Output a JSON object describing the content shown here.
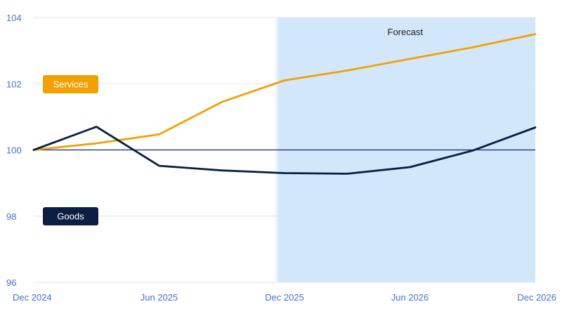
{
  "chart_data": {
    "type": "line",
    "x": [
      "Dec 2024",
      "Mar 2025",
      "Jun 2025",
      "Sep 2025",
      "Dec 2025",
      "Mar 2026",
      "Jun 2026",
      "Sep 2026",
      "Dec 2026"
    ],
    "xticks": [
      "Dec 2024",
      "Jun 2025",
      "Dec 2025",
      "Jun 2026",
      "Dec 2026"
    ],
    "yticks": [
      96,
      98,
      100,
      102,
      104
    ],
    "ylim": [
      96,
      104
    ],
    "reference_line": 100,
    "forecast": {
      "label": "Forecast",
      "start_index": 3.85,
      "end_index": 8
    },
    "series": [
      {
        "name": "Services",
        "color": "#f3a005",
        "values": [
          100.0,
          100.2,
          100.47,
          101.45,
          102.1,
          102.4,
          102.75,
          103.1,
          103.5
        ]
      },
      {
        "name": "Goods",
        "color": "#0b1f44",
        "values": [
          100.0,
          100.7,
          99.52,
          99.38,
          99.3,
          99.28,
          99.48,
          99.98,
          100.68
        ]
      }
    ],
    "colors": {
      "reference": "#0b2a7a",
      "forecast_bg": "#d3e7fb",
      "tick": "#4a6fd6",
      "grid": "#e3e6ec"
    }
  }
}
